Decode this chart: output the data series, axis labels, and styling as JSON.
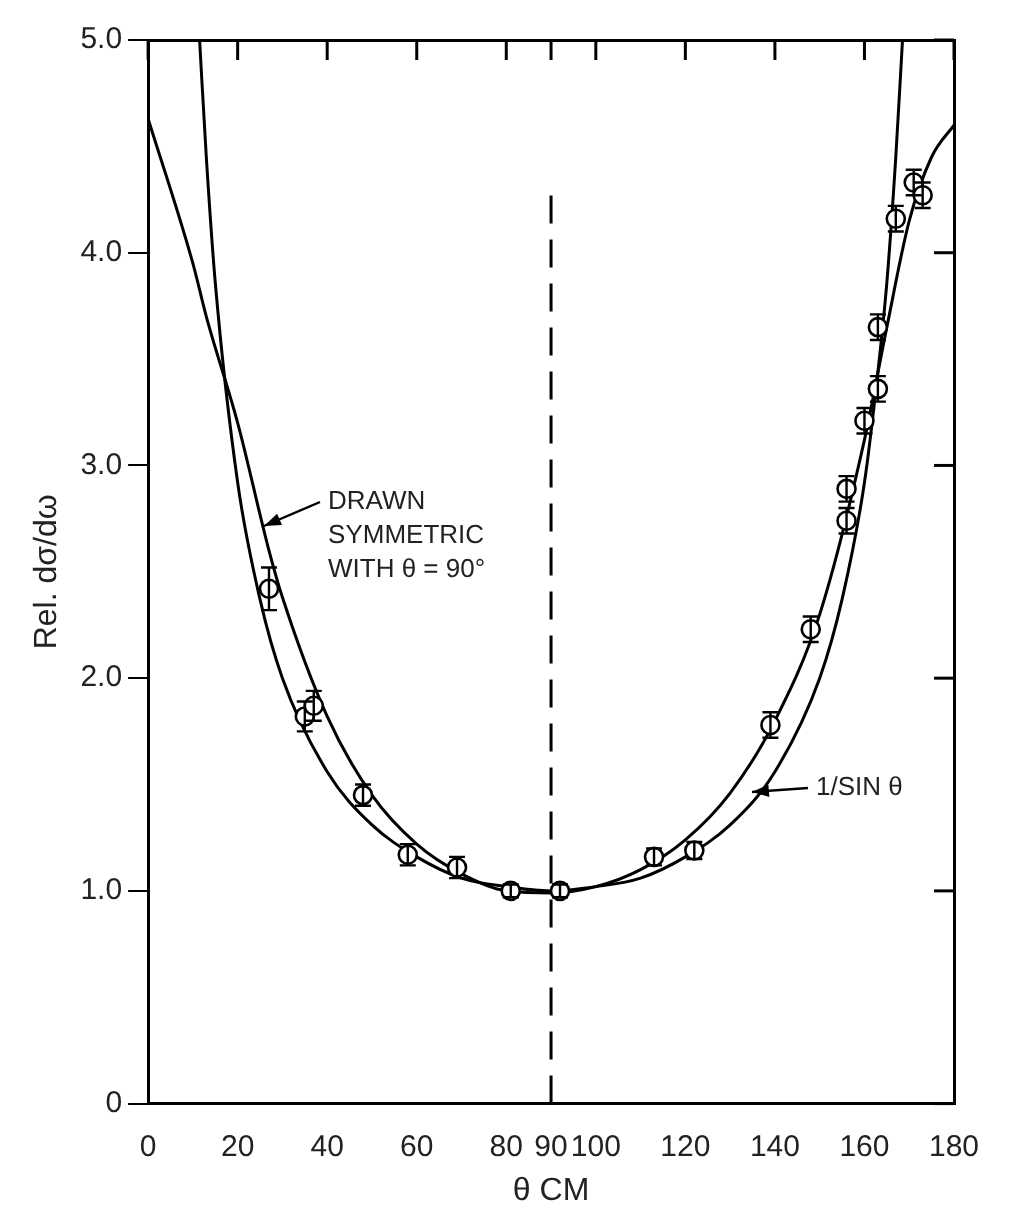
{
  "chart_data": {
    "type": "scatter",
    "xlabel": "θ CM",
    "ylabel": "Rel. dσ/dω",
    "xlim": [
      0,
      180
    ],
    "xticks": [
      0,
      20,
      40,
      60,
      80,
      90,
      100,
      120,
      140,
      160,
      180
    ],
    "ylim": [
      0,
      5
    ],
    "yticks": [
      {
        "value": 0,
        "label": "0"
      },
      {
        "value": 1,
        "label": "1.0"
      },
      {
        "value": 2,
        "label": "2.0"
      },
      {
        "value": 3,
        "label": "3.0"
      },
      {
        "value": 4,
        "label": "4.0"
      },
      {
        "value": 5,
        "label": "5.0"
      }
    ],
    "grid": false,
    "legend": false,
    "series": [
      {
        "marker": "circle",
        "color": "#000000",
        "x": [
          27,
          35,
          37,
          48,
          58,
          69,
          81,
          92,
          113,
          122,
          139,
          148,
          156,
          156,
          160,
          163,
          163,
          167,
          171,
          173
        ],
        "values": [
          2.42,
          1.82,
          1.87,
          1.45,
          1.17,
          1.11,
          1.0,
          1.0,
          1.16,
          1.19,
          1.78,
          2.23,
          2.74,
          2.89,
          3.21,
          3.36,
          3.65,
          4.16,
          4.33,
          4.27
        ],
        "errors": [
          0.1,
          0.07,
          0.07,
          0.05,
          0.05,
          0.05,
          0.03,
          0.03,
          0.04,
          0.04,
          0.06,
          0.06,
          0.06,
          0.06,
          0.06,
          0.06,
          0.06,
          0.06,
          0.06,
          0.06
        ]
      },
      {
        "type": "line",
        "marker": "none",
        "line_style": "solid",
        "color": "#000000",
        "x": [
          0,
          10,
          13,
          20,
          27,
          30,
          40,
          50,
          60,
          70,
          80,
          90,
          100,
          110,
          120,
          130,
          140,
          150,
          160,
          165,
          170,
          175,
          180
        ],
        "values": [
          4.63,
          3.95,
          3.7,
          3.2,
          2.6,
          2.38,
          1.82,
          1.45,
          1.22,
          1.08,
          1.0,
          0.99,
          1.02,
          1.1,
          1.24,
          1.46,
          1.8,
          2.3,
          3.12,
          3.65,
          4.15,
          4.45,
          4.6
        ]
      },
      {
        "type": "line",
        "marker": "none",
        "line_style": "solid",
        "color": "#000000",
        "x": [
          11.5,
          13,
          15,
          20,
          25,
          30,
          40,
          50,
          60,
          70,
          80,
          90,
          100,
          110,
          120,
          130,
          140,
          150,
          155,
          160,
          163,
          165,
          167,
          168.5
        ],
        "values": [
          5.0,
          4.45,
          3.86,
          2.92,
          2.37,
          2.0,
          1.56,
          1.31,
          1.16,
          1.06,
          1.02,
          1.0,
          1.02,
          1.06,
          1.16,
          1.31,
          1.56,
          2.0,
          2.37,
          2.92,
          3.44,
          3.86,
          4.45,
          5.0
        ]
      }
    ],
    "ref_lines": [
      {
        "axis": "x",
        "value": 90,
        "color": "#000000",
        "line_style": "dashed"
      }
    ],
    "annotations": [
      {
        "text": "DRAWN SYMMETRIC WITH θ = 90°",
        "x": 25,
        "y": 2.7
      },
      {
        "text": "1/SIN θ",
        "x": 134,
        "y": 1.45
      }
    ]
  }
}
